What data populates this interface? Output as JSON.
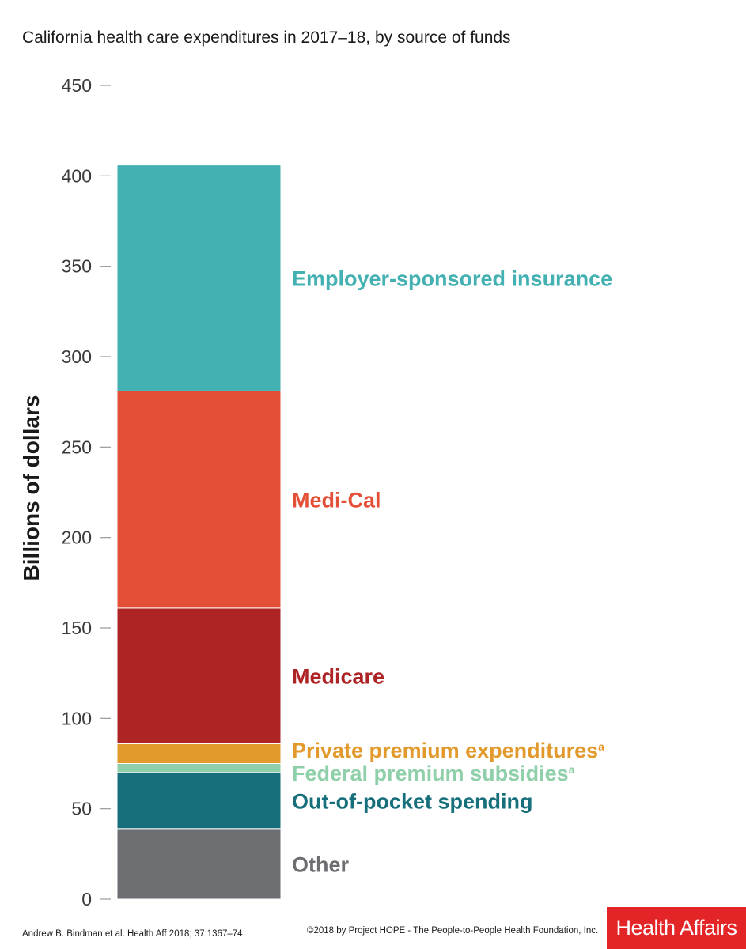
{
  "chart_data": {
    "type": "bar",
    "stacked": true,
    "title": "California health care expenditures in 2017–18, by source of funds",
    "ylabel": "Billions of dollars",
    "ylim": [
      0,
      450
    ],
    "yticks": [
      0,
      50,
      100,
      150,
      200,
      250,
      300,
      350,
      400,
      450
    ],
    "categories": [
      ""
    ],
    "grid": false,
    "legend": "inline-right",
    "series": [
      {
        "name": "Other",
        "value": 39,
        "color": "#6d6e71"
      },
      {
        "name": "Out-of-pocket spending",
        "value": 31,
        "color": "#176f7b"
      },
      {
        "name": "Federal premium subsidies",
        "superscript": "a",
        "value": 5,
        "color": "#8fcfa9"
      },
      {
        "name": "Private premium expenditures",
        "superscript": "a",
        "value": 11,
        "color": "#e39a2c"
      },
      {
        "name": "Medicare",
        "value": 75,
        "color": "#ae2424"
      },
      {
        "name": "Medi-Cal",
        "value": 120,
        "color": "#e44f38"
      },
      {
        "name": "Employer-sponsored insurance",
        "value": 125,
        "color": "#43b0b1"
      }
    ]
  },
  "footer": {
    "citation": "Andrew B. Bindman et al. Health Aff 2018; 37:1367–74",
    "copyright": "©2018 by Project HOPE - The People-to-People Health Foundation, Inc.",
    "logo": "Health Affairs"
  }
}
